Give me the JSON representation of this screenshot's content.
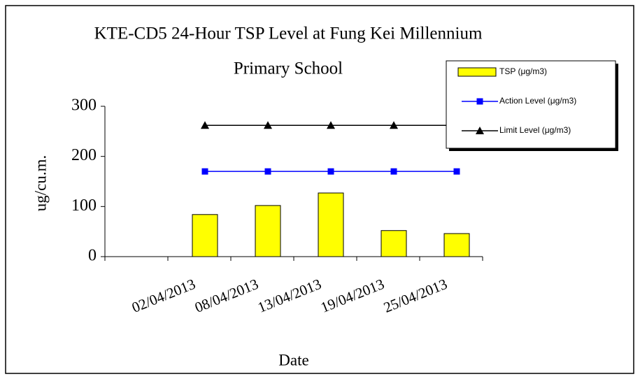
{
  "chart_data": {
    "type": "bar_line",
    "title": [
      "KTE-CD5 24-Hour TSP Level at Fung Kei Millennium",
      "Primary School"
    ],
    "x_label": "Date",
    "y_label": "ug/cu.m.",
    "categories": [
      null,
      "02/04/2013",
      "08/04/2013",
      "13/04/2013",
      "19/04/2013",
      "25/04/2013"
    ],
    "series": [
      {
        "name": "TSP (μg/m3)",
        "kind": "bar",
        "color": "#ffff00",
        "values": [
          null,
          84,
          102,
          127,
          52,
          46
        ]
      },
      {
        "name": "Action Level (μg/m3)",
        "kind": "line",
        "marker": "square",
        "color": "#0000ff",
        "values": [
          null,
          170,
          170,
          170,
          170,
          170
        ]
      },
      {
        "name": "Limit Level (μg/m3)",
        "kind": "line",
        "marker": "triangle",
        "color": "#000000",
        "values": [
          null,
          262,
          262,
          262,
          262,
          262
        ]
      }
    ],
    "ylim": [
      0,
      300
    ],
    "yticks": [
      0,
      100,
      200,
      300
    ],
    "legend": "upper right"
  }
}
